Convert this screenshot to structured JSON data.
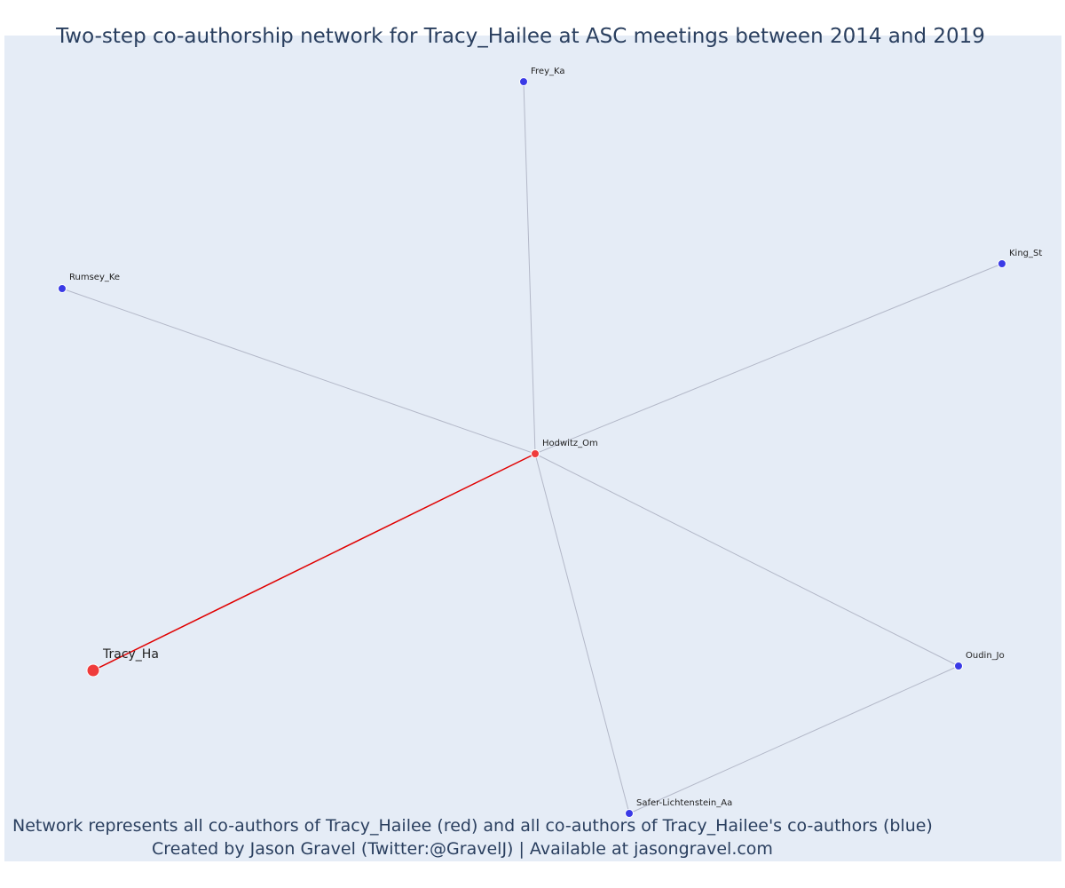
{
  "title": "Two-step co-authorship network for Tracy_Hailee at ASC meetings between 2014 and 2019",
  "captions": {
    "line1": "Network represents all co-authors of Tracy_Hailee (red) and all co-authors of Tracy_Hailee's co-authors (blue)",
    "line2": "Created by Jason Gravel (Twitter:@GravelJ) | Available at jasongravel.com"
  },
  "colors": {
    "background": "#e5ecf6",
    "focal_node": "#ef3b3b",
    "coauthor_node": "#4040e6",
    "second_step_node": "#3a3ae6",
    "focal_edge": "#e00000",
    "other_edge": "#b3b8c8",
    "text": "#2a3f5f"
  },
  "nodes": [
    {
      "id": "tracy",
      "label": "Tracy_Ha",
      "group": "focal"
    },
    {
      "id": "hodwitz",
      "label": "Hodwitz_Om",
      "group": "coauthor"
    },
    {
      "id": "frey",
      "label": "Frey_Ka",
      "group": "second"
    },
    {
      "id": "king",
      "label": "King_St",
      "group": "second"
    },
    {
      "id": "rumsey",
      "label": "Rumsey_Ke",
      "group": "second"
    },
    {
      "id": "oudin",
      "label": "Oudin_Jo",
      "group": "second"
    },
    {
      "id": "safer",
      "label": "Safer-Lichtenstein_Aa",
      "group": "second"
    }
  ],
  "edges": [
    {
      "source": "tracy",
      "target": "hodwitz",
      "kind": "focal"
    },
    {
      "source": "hodwitz",
      "target": "frey",
      "kind": "other"
    },
    {
      "source": "hodwitz",
      "target": "king",
      "kind": "other"
    },
    {
      "source": "hodwitz",
      "target": "rumsey",
      "kind": "other"
    },
    {
      "source": "hodwitz",
      "target": "oudin",
      "kind": "other"
    },
    {
      "source": "hodwitz",
      "target": "safer",
      "kind": "other"
    },
    {
      "source": "oudin",
      "target": "safer",
      "kind": "other"
    }
  ]
}
